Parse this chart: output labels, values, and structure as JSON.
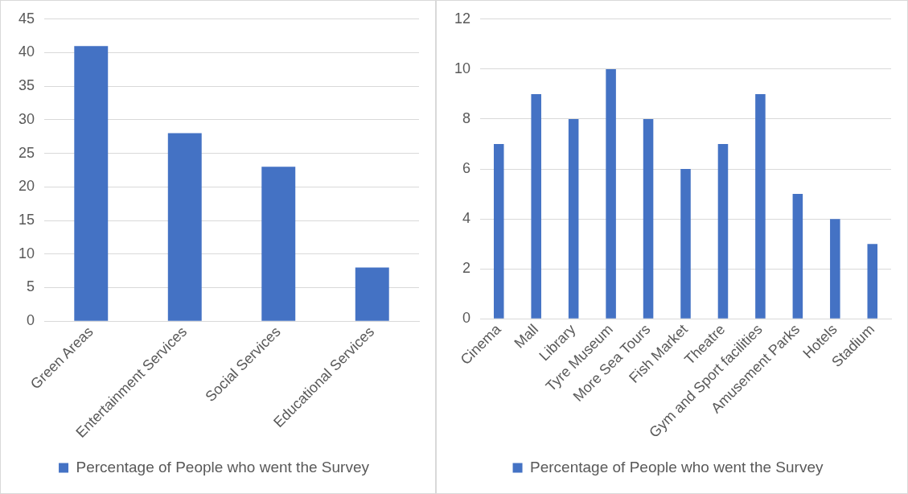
{
  "chart_data": [
    {
      "type": "bar",
      "categories": [
        "Green Areas",
        "Entertainment Services",
        "Social Services",
        "Educational Services"
      ],
      "series": [
        {
          "name": "Percentage of People who went the Survey",
          "color": "#4472c4",
          "values": [
            41,
            28,
            23,
            8
          ]
        }
      ],
      "ylim": [
        0,
        45
      ],
      "yticks": [
        0,
        5,
        10,
        15,
        20,
        25,
        30,
        35,
        40,
        45
      ],
      "grid": "y",
      "legend": "bottom"
    },
    {
      "type": "bar",
      "categories": [
        "Cinema",
        "Mall",
        "Library",
        "Tyre Museum",
        "More Sea Tours",
        "Fish Market",
        "Theatre",
        "Gym and Sport facilities",
        "Amusement Parks",
        "Hotels",
        "Stadium"
      ],
      "series": [
        {
          "name": "Percentage of People who went the Survey",
          "color": "#4472c4",
          "values": [
            7,
            9,
            8,
            10,
            8,
            6,
            7,
            9,
            5,
            4,
            3
          ]
        }
      ],
      "ylim": [
        0,
        12
      ],
      "yticks": [
        0,
        2,
        4,
        6,
        8,
        10,
        12
      ],
      "grid": "y",
      "legend": "bottom"
    }
  ]
}
